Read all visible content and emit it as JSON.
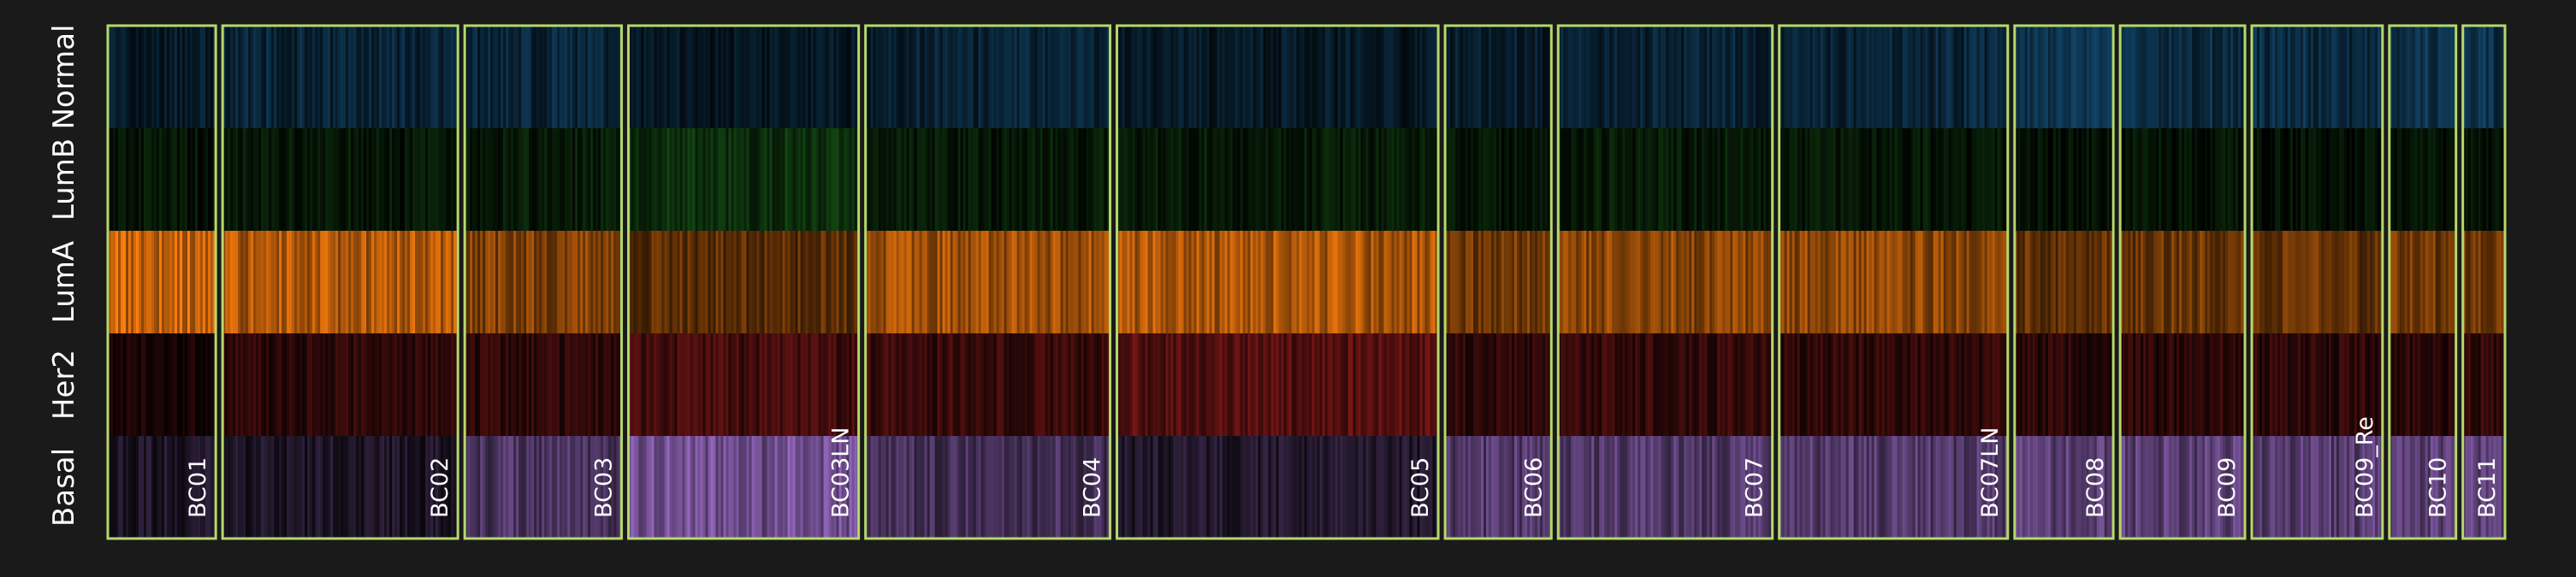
{
  "chart_data": {
    "type": "heatmap",
    "rows": [
      "Normal",
      "LumB",
      "LumA",
      "Her2",
      "Basal"
    ],
    "samples": [
      "BC01",
      "BC02",
      "BC03",
      "BC03LN",
      "BC04",
      "BC05",
      "BC06",
      "BC07",
      "BC07LN",
      "BC08",
      "BC09",
      "BC09_Re",
      "BC10",
      "BC11"
    ],
    "sample_weights": [
      128,
      279,
      186,
      273,
      290,
      381,
      126,
      254,
      271,
      117,
      148,
      155,
      79,
      50
    ],
    "row_colors": {
      "Normal": "#1f77b4",
      "LumB": "#2ca02c",
      "LumA": "#ff7f0e",
      "Her2": "#d62728",
      "Basal": "#9467bd"
    },
    "sample_scores": {
      "BC01": {
        "Normal": 0.22,
        "LumB": 0.12,
        "LumA": 0.8,
        "Her2": 0.1,
        "Basal": 0.2
      },
      "BC02": {
        "Normal": 0.3,
        "LumB": 0.14,
        "LumA": 0.68,
        "Her2": 0.2,
        "Basal": 0.2
      },
      "BC03": {
        "Normal": 0.3,
        "LumB": 0.16,
        "LumA": 0.5,
        "Her2": 0.22,
        "Basal": 0.5
      },
      "BC03LN": {
        "Normal": 0.18,
        "LumB": 0.3,
        "LumA": 0.36,
        "Her2": 0.3,
        "Basal": 0.75
      },
      "BC04": {
        "Normal": 0.28,
        "LumB": 0.15,
        "LumA": 0.62,
        "Her2": 0.26,
        "Basal": 0.45
      },
      "BC05": {
        "Normal": 0.2,
        "LumB": 0.16,
        "LumA": 0.66,
        "Her2": 0.4,
        "Basal": 0.22
      },
      "BC06": {
        "Normal": 0.24,
        "LumB": 0.12,
        "LumA": 0.45,
        "Her2": 0.2,
        "Basal": 0.55
      },
      "BC07": {
        "Normal": 0.28,
        "LumB": 0.16,
        "LumA": 0.55,
        "Her2": 0.24,
        "Basal": 0.55
      },
      "BC07LN": {
        "Normal": 0.3,
        "LumB": 0.14,
        "LumA": 0.55,
        "Her2": 0.22,
        "Basal": 0.55
      },
      "BC08": {
        "Normal": 0.4,
        "LumB": 0.1,
        "LumA": 0.4,
        "Her2": 0.2,
        "Basal": 0.6
      },
      "BC09": {
        "Normal": 0.35,
        "LumB": 0.12,
        "LumA": 0.42,
        "Her2": 0.2,
        "Basal": 0.6
      },
      "BC09_Re": {
        "Normal": 0.36,
        "LumB": 0.1,
        "LumA": 0.4,
        "Her2": 0.2,
        "Basal": 0.58
      },
      "BC10": {
        "Normal": 0.42,
        "LumB": 0.1,
        "LumA": 0.45,
        "Her2": 0.2,
        "Basal": 0.62
      },
      "BC11": {
        "Normal": 0.42,
        "LumB": 0.1,
        "LumA": 0.42,
        "Her2": 0.22,
        "Basal": 0.62
      }
    },
    "border_color": "#b5d86b",
    "legend": "none",
    "grid": false
  }
}
